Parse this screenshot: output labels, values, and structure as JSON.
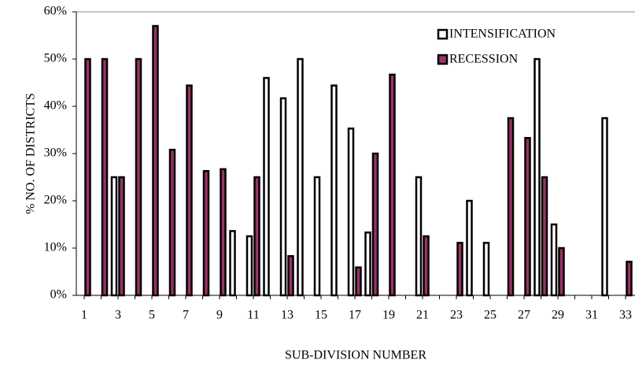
{
  "chart_data": {
    "type": "bar",
    "x_label": "SUB-DIVISION NUMBER",
    "y_label": "% NO. OF DISTRICTS",
    "categories": [
      "1",
      null,
      "3",
      null,
      "5",
      null,
      "7",
      null,
      "9",
      null,
      "11",
      null,
      "13",
      null,
      "15",
      null,
      "17",
      null,
      "19",
      null,
      "21",
      null,
      "23",
      null,
      "25",
      null,
      "27",
      null,
      "29",
      null,
      "31",
      null,
      "33"
    ],
    "series": [
      {
        "name": "INTENSIFICATION",
        "color": "#ffffff",
        "values": [
          null,
          null,
          25,
          null,
          null,
          null,
          null,
          null,
          null,
          13.6,
          12.5,
          46,
          41.7,
          50,
          25,
          44.4,
          35.3,
          13.3,
          null,
          null,
          25,
          null,
          null,
          20,
          11.1,
          null,
          null,
          50,
          15,
          null,
          null,
          37.5,
          null
        ]
      },
      {
        "name": "RECESSION",
        "color": "#993366",
        "values": [
          50,
          50,
          25,
          50,
          57,
          30.8,
          44.4,
          26.3,
          26.7,
          null,
          25,
          null,
          8.3,
          null,
          null,
          null,
          5.9,
          30,
          46.7,
          null,
          12.5,
          null,
          11.1,
          null,
          null,
          37.5,
          33.3,
          25,
          10,
          null,
          null,
          null,
          7.1
        ]
      }
    ],
    "ylim": [
      0,
      60
    ],
    "yticks": [
      {
        "value": 0,
        "label": "0%"
      },
      {
        "value": 10,
        "label": "10%"
      },
      {
        "value": 20,
        "label": "20%"
      },
      {
        "value": 30,
        "label": "30%"
      },
      {
        "value": 40,
        "label": "40%"
      },
      {
        "value": 50,
        "label": "50%"
      },
      {
        "value": 60,
        "label": "60%"
      }
    ],
    "grid": false,
    "legend": "top-right"
  }
}
